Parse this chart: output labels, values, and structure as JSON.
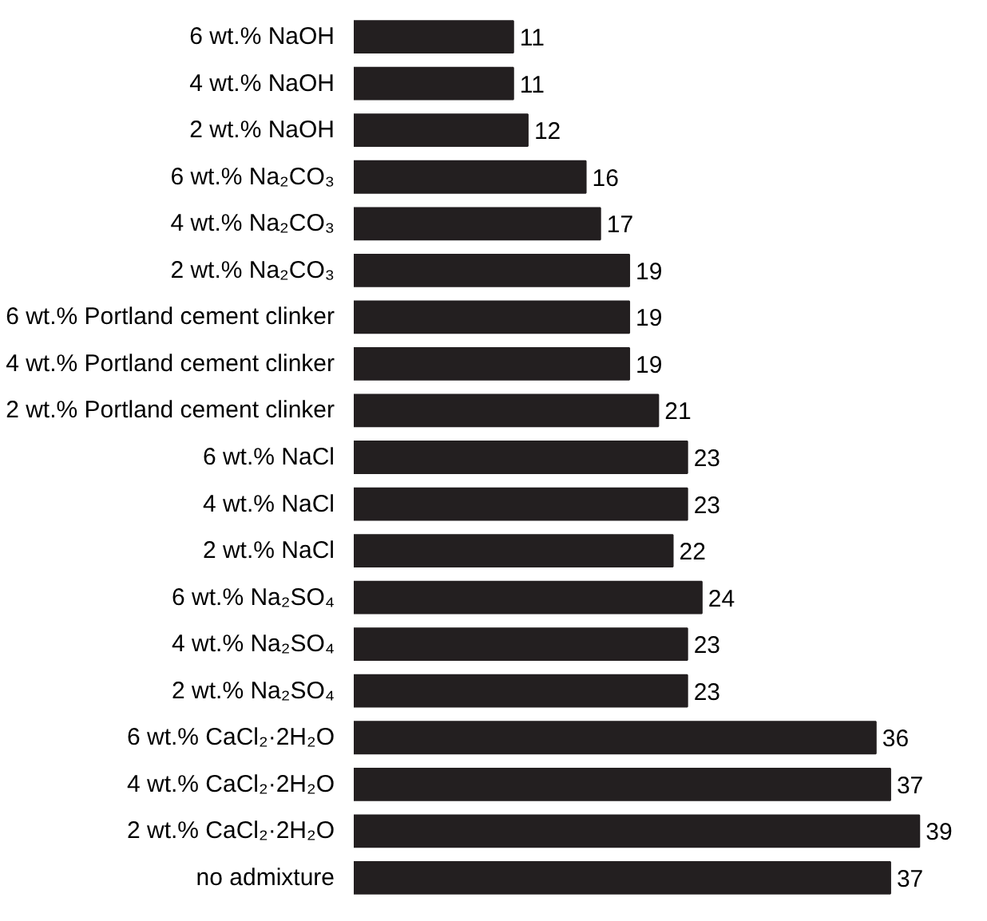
{
  "chart_data": {
    "type": "bar",
    "orientation": "horizontal",
    "data_labels": true,
    "categories": [
      "6 wt.% NaOH",
      "4 wt.% NaOH",
      "2 wt.% NaOH",
      "6 wt.% Na₂CO₃",
      "4 wt.% Na₂CO₃",
      "2 wt.% Na₂CO₃",
      "6 wt.% Portland cement clinker",
      "4 wt.% Portland cement clinker",
      "2 wt.% Portland cement clinker",
      "6 wt.% NaCl",
      "4 wt.% NaCl",
      "2 wt.% NaCl",
      "6 wt.% Na₂SO₄",
      "4 wt.% Na₂SO₄",
      "2 wt.% Na₂SO₄",
      "6 wt.% CaCl₂·2H₂O",
      "4 wt.% CaCl₂·2H₂O",
      "2 wt.% CaCl₂·2H₂O",
      "no admixture"
    ],
    "values": [
      11,
      11,
      12,
      16,
      17,
      19,
      19,
      19,
      21,
      23,
      23,
      22,
      24,
      23,
      23,
      36,
      37,
      39,
      37
    ],
    "color": "#231f20"
  }
}
